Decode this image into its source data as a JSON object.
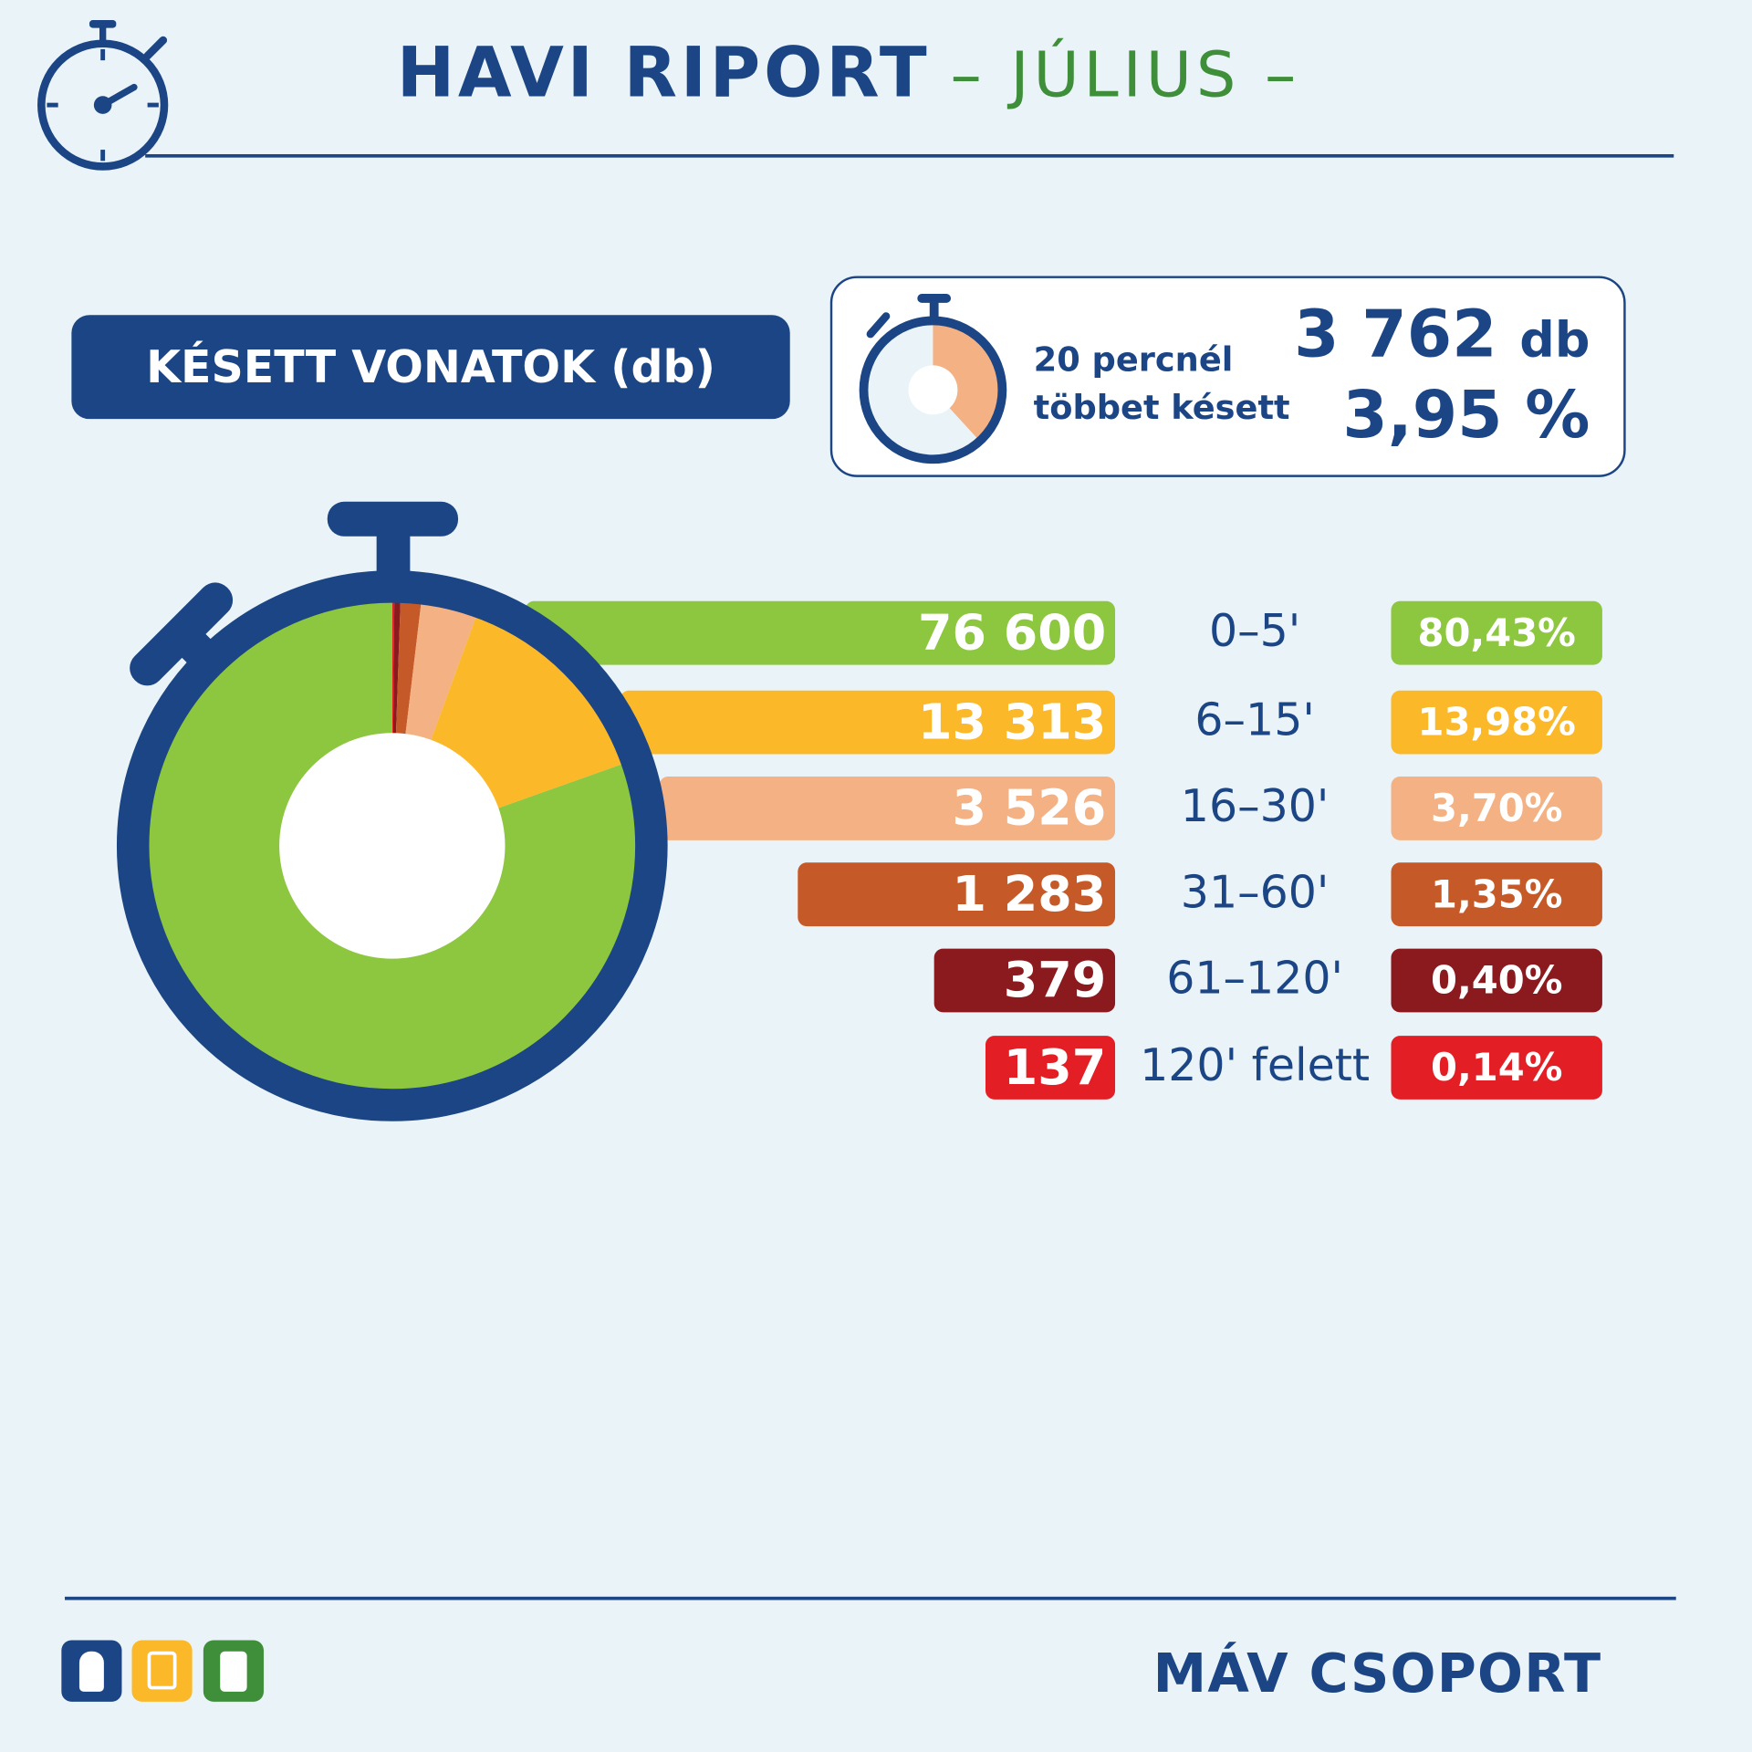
{
  "header": {
    "title": "HAVI RIPORT",
    "subtitle": "– JÚLIUS –"
  },
  "badge": "KÉSETT VONATOK (db)",
  "summary": {
    "label_line1": "20 percnél",
    "label_line2": "többet késett",
    "count": "3 762",
    "count_unit": "db",
    "percent": "3,95 %",
    "percent_value": 3.95
  },
  "colors": {
    "navy": "#1b4584",
    "green": "#8dc63f",
    "yellow": "#fbb92a",
    "peach": "#f4b183",
    "orange": "#c55a28",
    "darkred": "#8b1a1e",
    "red": "#e31e24"
  },
  "chart_data": {
    "type": "pie",
    "title": "KÉSETT VONATOK (db)",
    "categories": [
      "0–5'",
      "6–15'",
      "16–30'",
      "31–60'",
      "61–120'",
      "120' felett"
    ],
    "values": [
      76600,
      13313,
      3526,
      1283,
      379,
      137
    ],
    "value_labels": [
      "76 600",
      "13 313",
      "3 526",
      "1 283",
      "379",
      "137"
    ],
    "percent_labels": [
      "80,43%",
      "13,98%",
      "3,70%",
      "1,35%",
      "0,40%",
      "0,14%"
    ],
    "percents": [
      80.43,
      13.98,
      3.7,
      1.35,
      0.4,
      0.14
    ],
    "colors": [
      "#8dc63f",
      "#fbb92a",
      "#f4b183",
      "#c55a28",
      "#8b1a1e",
      "#e31e24"
    ],
    "donut": true
  },
  "footer": {
    "logo": "MÁV CSOPORT",
    "icons": [
      "train-icon",
      "bus-icon",
      "tram-icon"
    ]
  }
}
